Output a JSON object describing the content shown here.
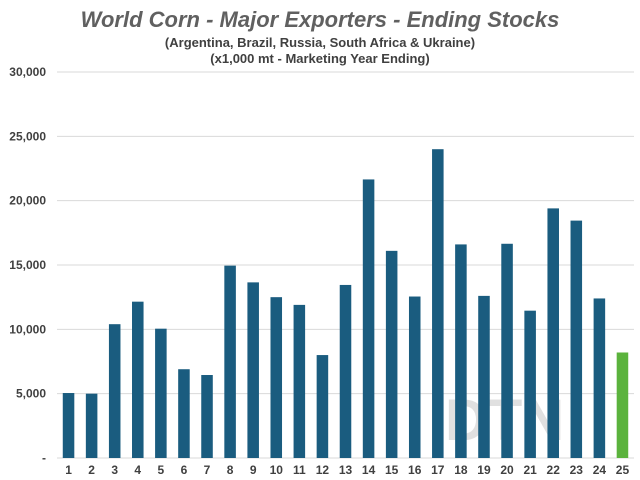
{
  "chart_data": {
    "type": "bar",
    "title": "World Corn - Major Exporters - Ending Stocks",
    "subtitle_1": "(Argentina, Brazil, Russia, South Africa & Ukraine)",
    "subtitle_2": "(x1,000 mt - Marketing Year Ending)",
    "xlabel": "",
    "ylabel": "",
    "ylim": [
      0,
      30000
    ],
    "yticks": [
      0,
      5000,
      10000,
      15000,
      20000,
      25000,
      30000
    ],
    "ytick_labels": [
      "-",
      "5,000",
      "10,000",
      "15,000",
      "20,000",
      "25,000",
      "30,000"
    ],
    "grid": true,
    "legend": "none",
    "categories": [
      "1",
      "2",
      "3",
      "4",
      "5",
      "6",
      "7",
      "8",
      "9",
      "10",
      "11",
      "12",
      "13",
      "14",
      "15",
      "16",
      "17",
      "18",
      "19",
      "20",
      "21",
      "22",
      "23",
      "24",
      "25"
    ],
    "values": [
      5050,
      5000,
      10400,
      12150,
      10050,
      6900,
      6450,
      14950,
      13650,
      12500,
      11900,
      8000,
      13450,
      21650,
      16100,
      12550,
      24000,
      16600,
      12600,
      16650,
      11450,
      19400,
      18450,
      12400,
      8200
    ],
    "colors": {
      "bar": "#1a5c7f",
      "highlight": "#5bb33d",
      "highlight_index": 24
    },
    "watermark": "DTN"
  }
}
